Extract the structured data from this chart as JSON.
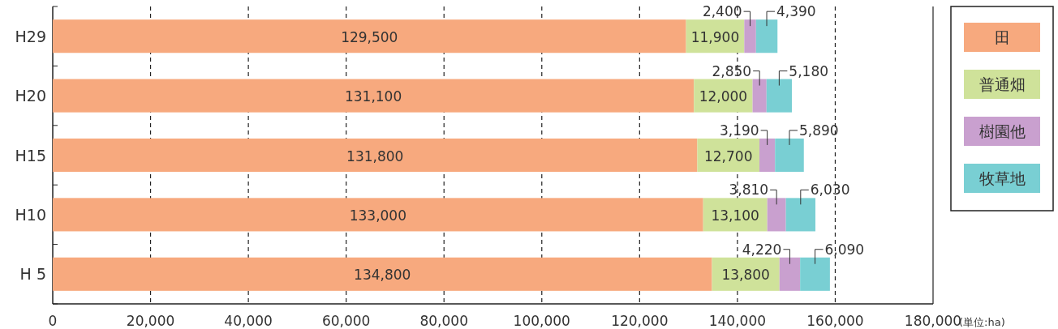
{
  "chart_data": {
    "type": "bar",
    "orientation": "horizontal",
    "stacked": true,
    "grid": "x",
    "legend": "right",
    "categories": [
      "H29",
      "H20",
      "H15",
      "H10",
      "H 5"
    ],
    "series": [
      {
        "name": "田",
        "color": "#f7a97e",
        "values": [
          129500,
          131100,
          131800,
          133000,
          134800
        ],
        "value_labels": [
          "129,500",
          "131,100",
          "131,800",
          "133,000",
          "134,800"
        ]
      },
      {
        "name": "普通畑",
        "color": "#cfe29a",
        "values": [
          11900,
          12000,
          12700,
          13100,
          13800
        ],
        "value_labels": [
          "11,900",
          "12,000",
          "12,700",
          "13,100",
          "13,800"
        ]
      },
      {
        "name": "樹園他",
        "color": "#c9a0cf",
        "values": [
          2400,
          2850,
          3190,
          3810,
          4220
        ],
        "value_labels": [
          "2,400",
          "2,850",
          "3,190",
          "3,810",
          "4,220"
        ]
      },
      {
        "name": "牧草地",
        "color": "#79cfd3",
        "values": [
          4390,
          5180,
          5890,
          6030,
          6090
        ],
        "value_labels": [
          "4,390",
          "5,180",
          "5,890",
          "6,030",
          "6,090"
        ]
      }
    ],
    "xlim": [
      0,
      180000
    ],
    "xticks": [
      {
        "value": 0,
        "label": "0"
      },
      {
        "value": 20000,
        "label": "20,000"
      },
      {
        "value": 40000,
        "label": "40,000"
      },
      {
        "value": 60000,
        "label": "60,000"
      },
      {
        "value": 80000,
        "label": "80,000"
      },
      {
        "value": 100000,
        "label": "100,000"
      },
      {
        "value": 120000,
        "label": "120,000"
      },
      {
        "value": 140000,
        "label": "140,000"
      },
      {
        "value": 160000,
        "label": "160,000"
      },
      {
        "value": 180000,
        "label": "180,000"
      }
    ],
    "annotations": [
      "(単位:ha)"
    ]
  }
}
